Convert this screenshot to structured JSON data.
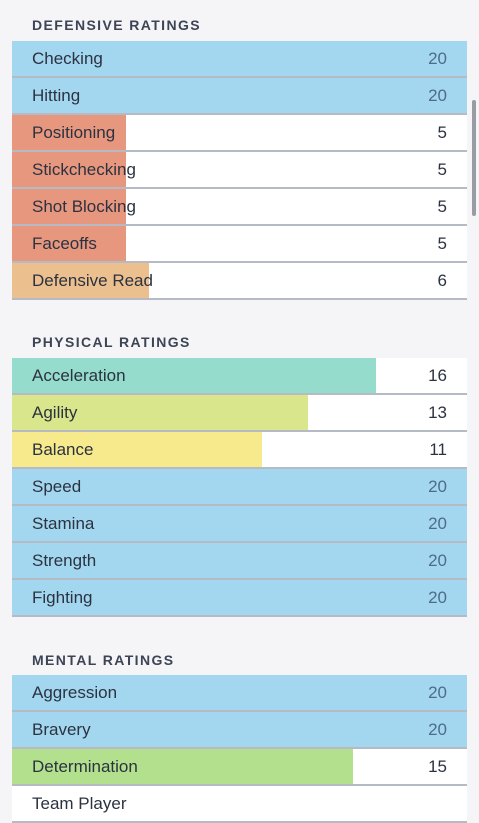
{
  "value_max": 20,
  "sections": [
    {
      "title": "DEFENSIVE RATINGS",
      "rows": [
        {
          "label": "Checking",
          "value": 20,
          "color": "#a3d7f0"
        },
        {
          "label": "Hitting",
          "value": 20,
          "color": "#a3d7f0"
        },
        {
          "label": "Positioning",
          "value": 5,
          "color": "#e8977f"
        },
        {
          "label": "Stickchecking",
          "value": 5,
          "color": "#e8977f"
        },
        {
          "label": "Shot Blocking",
          "value": 5,
          "color": "#e8977f"
        },
        {
          "label": "Faceoffs",
          "value": 5,
          "color": "#e8977f"
        },
        {
          "label": "Defensive Read",
          "value": 6,
          "color": "#ecbf8e"
        }
      ]
    },
    {
      "title": "PHYSICAL RATINGS",
      "rows": [
        {
          "label": "Acceleration",
          "value": 16,
          "color": "#95dccd"
        },
        {
          "label": "Agility",
          "value": 13,
          "color": "#d9e68b"
        },
        {
          "label": "Balance",
          "value": 11,
          "color": "#f6ea8d"
        },
        {
          "label": "Speed",
          "value": 20,
          "color": "#a3d7f0"
        },
        {
          "label": "Stamina",
          "value": 20,
          "color": "#a3d7f0"
        },
        {
          "label": "Strength",
          "value": 20,
          "color": "#a3d7f0"
        },
        {
          "label": "Fighting",
          "value": 20,
          "color": "#a3d7f0"
        }
      ]
    },
    {
      "title": "MENTAL RATINGS",
      "rows": [
        {
          "label": "Aggression",
          "value": 20,
          "color": "#a3d7f0"
        },
        {
          "label": "Bravery",
          "value": 20,
          "color": "#a3d7f0"
        },
        {
          "label": "Determination",
          "value": 15,
          "color": "#b3e08d"
        },
        {
          "label": "Team Player"
        }
      ]
    }
  ]
}
